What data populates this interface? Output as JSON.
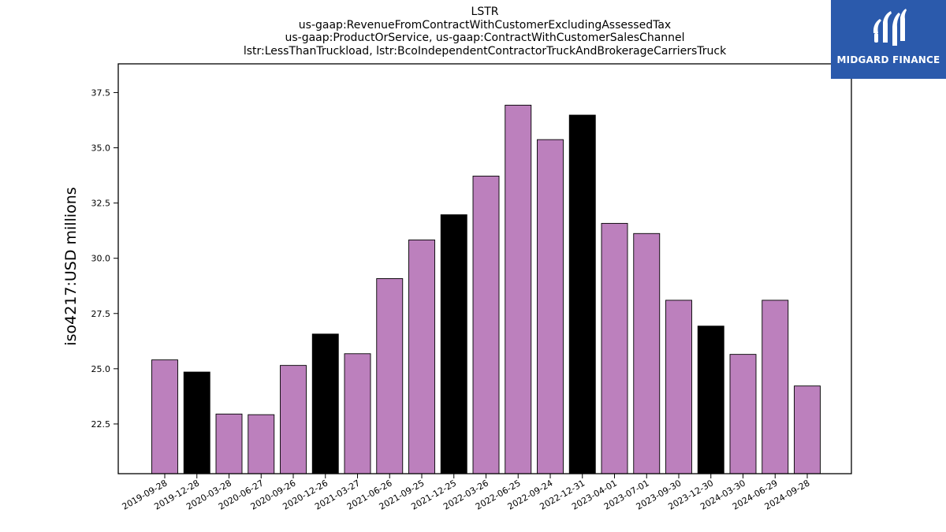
{
  "chart_data": {
    "type": "bar",
    "title_lines": [
      "LSTR",
      "us-gaap:RevenueFromContractWithCustomerExcludingAssessedTax",
      "us-gaap:ProductOrService, us-gaap:ContractWithCustomerSalesChannel",
      "lstr:LessThanTruckload, lstr:BcoIndependentContractorTruckAndBrokerageCarriersTruck"
    ],
    "ylabel": "iso4217:USD  millions",
    "xlabel": "",
    "ylim": [
      20.25,
      38.8
    ],
    "yticks": [
      22.5,
      25.0,
      27.5,
      30.0,
      32.5,
      35.0,
      37.5
    ],
    "ytick_labels": [
      "22.5",
      "25.0",
      "27.5",
      "30.0",
      "32.5",
      "35.0",
      "37.5"
    ],
    "grid": false,
    "categories": [
      "2019-09-28",
      "2019-12-28",
      "2020-03-28",
      "2020-06-27",
      "2020-09-26",
      "2020-12-26",
      "2021-03-27",
      "2021-06-26",
      "2021-09-25",
      "2021-12-25",
      "2022-03-26",
      "2022-06-25",
      "2022-09-24",
      "2022-12-31",
      "2023-04-01",
      "2023-07-01",
      "2023-09-30",
      "2023-12-30",
      "2024-03-30",
      "2024-06-29",
      "2024-09-28"
    ],
    "values": [
      25.4,
      24.85,
      22.95,
      22.92,
      25.15,
      26.57,
      25.68,
      29.08,
      30.83,
      31.97,
      33.72,
      36.93,
      35.37,
      36.48,
      31.58,
      31.12,
      28.1,
      26.93,
      25.65,
      28.1,
      24.22
    ],
    "bar_colors": [
      "#bc80bd",
      "#000000",
      "#bc80bd",
      "#bc80bd",
      "#bc80bd",
      "#000000",
      "#bc80bd",
      "#bc80bd",
      "#bc80bd",
      "#000000",
      "#bc80bd",
      "#bc80bd",
      "#bc80bd",
      "#000000",
      "#bc80bd",
      "#bc80bd",
      "#bc80bd",
      "#000000",
      "#bc80bd",
      "#bc80bd",
      "#bc80bd"
    ]
  },
  "logo": {
    "text": "MIDGARD FINANCE",
    "background": "#2b5aac"
  }
}
